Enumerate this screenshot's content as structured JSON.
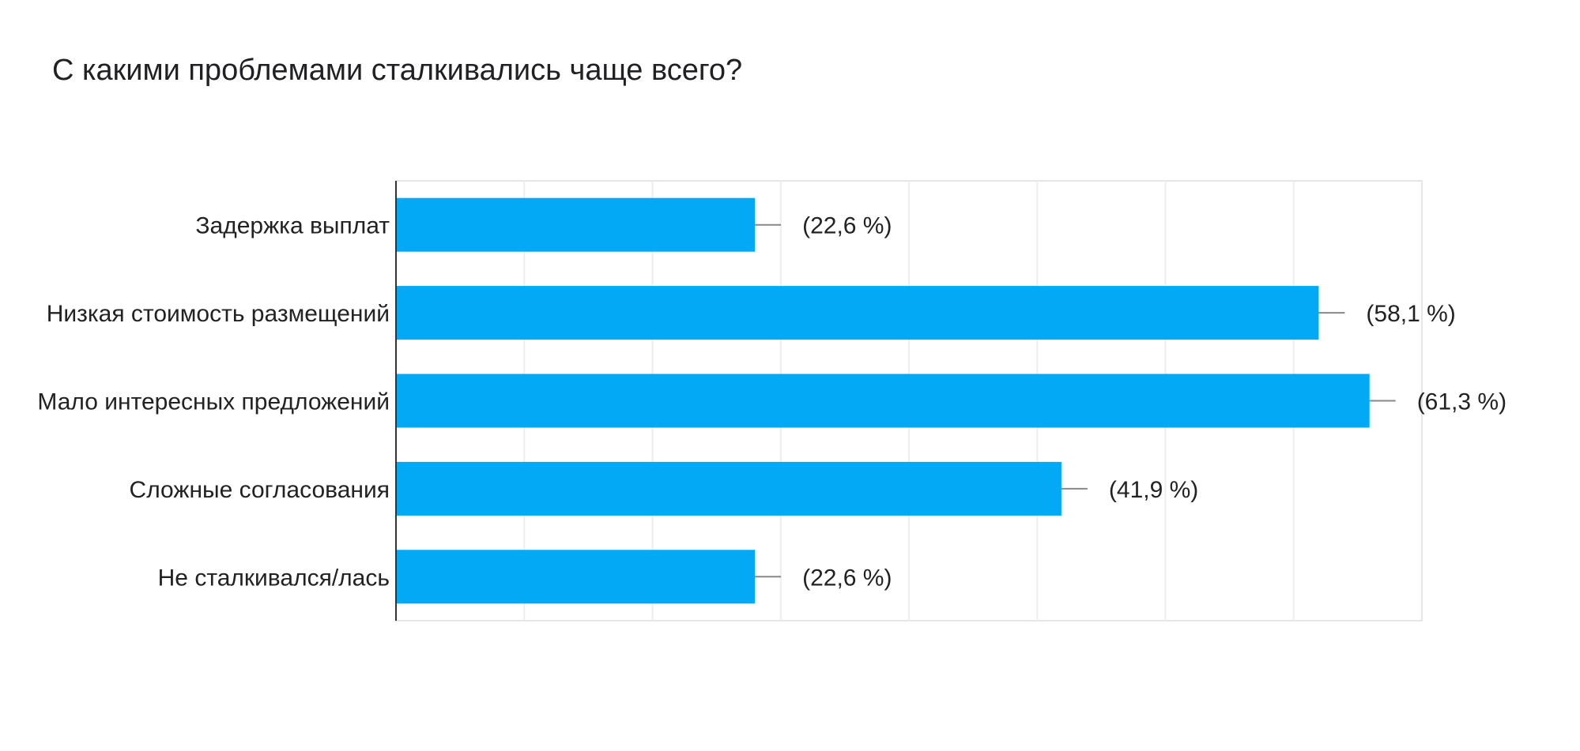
{
  "chart_data": {
    "type": "bar",
    "orientation": "horizontal",
    "title": "С какими проблемами сталкивались чаще всего?",
    "categories": [
      "Задержка выплат",
      "Низкая стоимость размещений",
      "Мало интересных предложений",
      "Сложные согласования",
      "Не сталкивался/лась"
    ],
    "values": [
      22.6,
      58.1,
      61.3,
      41.9,
      22.6
    ],
    "value_labels": [
      "(22,6 %)",
      "(58,1 %)",
      "(61,3 %)",
      "(41,9 %)",
      "(22,6 %)"
    ],
    "xlim": [
      0,
      64.6
    ],
    "grid": true,
    "legend": "none",
    "bar_color": "#03a9f4"
  }
}
